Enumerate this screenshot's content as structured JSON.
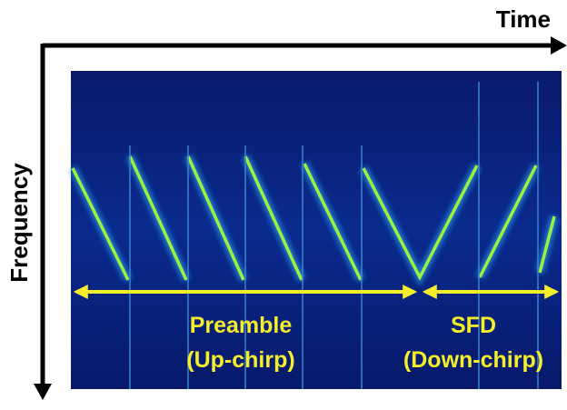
{
  "axes": {
    "x_label": "Time",
    "y_label": "Frequency"
  },
  "segments": [
    {
      "label": "Preamble",
      "sublabel": "(Up-chirp)"
    },
    {
      "label": "SFD",
      "sublabel": "(Down-chirp)"
    }
  ]
}
